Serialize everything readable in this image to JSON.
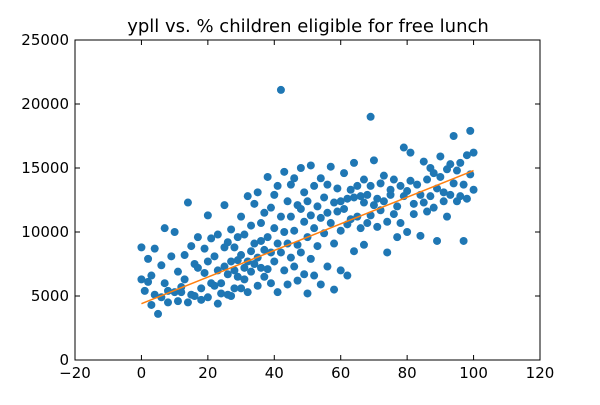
{
  "chart_data": {
    "type": "scatter",
    "title": "ypll vs. % children eligible for free lunch",
    "xlabel": "",
    "ylabel": "",
    "xlim": [
      -20,
      120
    ],
    "ylim": [
      0,
      25000
    ],
    "x_ticks": [
      -20,
      0,
      20,
      40,
      60,
      80,
      100,
      120
    ],
    "y_ticks": [
      0,
      5000,
      10000,
      15000,
      20000,
      25000
    ],
    "x_tick_labels": [
      "−20",
      "0",
      "20",
      "40",
      "60",
      "80",
      "100",
      "120"
    ],
    "y_tick_labels": [
      "0",
      "5000",
      "10000",
      "15000",
      "20000",
      "25000"
    ],
    "grid": false,
    "legend": "none",
    "colors": {
      "points": "#1f77b4",
      "fit_line": "#ff7f0e",
      "axes": "#000000"
    },
    "series": [
      {
        "kind": "points",
        "points": [
          [
            0,
            8800
          ],
          [
            0,
            6300
          ],
          [
            1,
            5400
          ],
          [
            2,
            7900
          ],
          [
            2,
            6100
          ],
          [
            3,
            4300
          ],
          [
            3,
            6600
          ],
          [
            4,
            8700
          ],
          [
            4,
            5100
          ],
          [
            5,
            3600
          ],
          [
            6,
            4900
          ],
          [
            6,
            7400
          ],
          [
            7,
            10300
          ],
          [
            7,
            6000
          ],
          [
            8,
            4500
          ],
          [
            8,
            5400
          ],
          [
            9,
            8100
          ],
          [
            10,
            10000
          ],
          [
            10,
            5300
          ],
          [
            11,
            4600
          ],
          [
            11,
            6900
          ],
          [
            12,
            5700
          ],
          [
            12,
            5300
          ],
          [
            13,
            8200
          ],
          [
            13,
            6300
          ],
          [
            14,
            12300
          ],
          [
            14,
            4500
          ],
          [
            15,
            5100
          ],
          [
            15,
            8900
          ],
          [
            16,
            7500
          ],
          [
            16,
            5000
          ],
          [
            17,
            7200
          ],
          [
            17,
            9600
          ],
          [
            18,
            5600
          ],
          [
            18,
            4700
          ],
          [
            19,
            6800
          ],
          [
            19,
            8700
          ],
          [
            20,
            4900
          ],
          [
            20,
            11300
          ],
          [
            20,
            7700
          ],
          [
            21,
            6000
          ],
          [
            21,
            9500
          ],
          [
            22,
            5800
          ],
          [
            22,
            8100
          ],
          [
            23,
            4400
          ],
          [
            23,
            9800
          ],
          [
            23,
            7000
          ],
          [
            24,
            6000
          ],
          [
            24,
            5200
          ],
          [
            25,
            8800
          ],
          [
            25,
            7300
          ],
          [
            25,
            12100
          ],
          [
            26,
            5100
          ],
          [
            26,
            9200
          ],
          [
            26,
            6700
          ],
          [
            27,
            7700
          ],
          [
            27,
            10200
          ],
          [
            27,
            5000
          ],
          [
            28,
            7000
          ],
          [
            28,
            8800
          ],
          [
            28,
            5600
          ],
          [
            29,
            9600
          ],
          [
            29,
            6500
          ],
          [
            29,
            7800
          ],
          [
            30,
            8200
          ],
          [
            30,
            11200
          ],
          [
            30,
            5600
          ],
          [
            31,
            7200
          ],
          [
            31,
            9800
          ],
          [
            31,
            6300
          ],
          [
            32,
            12800
          ],
          [
            32,
            7700
          ],
          [
            32,
            5300
          ],
          [
            33,
            8500
          ],
          [
            33,
            10500
          ],
          [
            33,
            6900
          ],
          [
            34,
            7500
          ],
          [
            34,
            12200
          ],
          [
            34,
            9100
          ],
          [
            35,
            13100
          ],
          [
            35,
            5800
          ],
          [
            35,
            8000
          ],
          [
            36,
            10700
          ],
          [
            36,
            7200
          ],
          [
            36,
            9300
          ],
          [
            37,
            11500
          ],
          [
            37,
            6500
          ],
          [
            37,
            8600
          ],
          [
            38,
            14300
          ],
          [
            38,
            9600
          ],
          [
            38,
            7100
          ],
          [
            39,
            11900
          ],
          [
            39,
            8400
          ],
          [
            39,
            6000
          ],
          [
            40,
            10300
          ],
          [
            40,
            12900
          ],
          [
            40,
            7700
          ],
          [
            41,
            9100
          ],
          [
            41,
            13600
          ],
          [
            41,
            5300
          ],
          [
            42,
            21100
          ],
          [
            42,
            11200
          ],
          [
            42,
            8400
          ],
          [
            43,
            10000
          ],
          [
            43,
            14700
          ],
          [
            43,
            7000
          ],
          [
            44,
            12400
          ],
          [
            44,
            9100
          ],
          [
            44,
            5900
          ],
          [
            45,
            11200
          ],
          [
            45,
            8000
          ],
          [
            45,
            13700
          ],
          [
            46,
            10100
          ],
          [
            46,
            14200
          ],
          [
            46,
            7300
          ],
          [
            47,
            12100
          ],
          [
            47,
            9000
          ],
          [
            47,
            6200
          ],
          [
            48,
            11800
          ],
          [
            48,
            15000
          ],
          [
            48,
            8400
          ],
          [
            49,
            10800
          ],
          [
            49,
            13100
          ],
          [
            49,
            6700
          ],
          [
            50,
            12400
          ],
          [
            50,
            9600
          ],
          [
            50,
            5200
          ],
          [
            51,
            11300
          ],
          [
            51,
            15200
          ],
          [
            51,
            7900
          ],
          [
            52,
            10300
          ],
          [
            52,
            13600
          ],
          [
            52,
            6600
          ],
          [
            53,
            12000
          ],
          [
            53,
            8900
          ],
          [
            54,
            11100
          ],
          [
            54,
            14200
          ],
          [
            54,
            5900
          ],
          [
            55,
            12700
          ],
          [
            55,
            9900
          ],
          [
            56,
            11500
          ],
          [
            56,
            13700
          ],
          [
            56,
            7300
          ],
          [
            57,
            10700
          ],
          [
            57,
            15100
          ],
          [
            58,
            12300
          ],
          [
            58,
            9100
          ],
          [
            58,
            5500
          ],
          [
            59,
            11600
          ],
          [
            59,
            13400
          ],
          [
            60,
            12400
          ],
          [
            60,
            10100
          ],
          [
            60,
            7000
          ],
          [
            61,
            11800
          ],
          [
            61,
            14600
          ],
          [
            62,
            12600
          ],
          [
            62,
            10600
          ],
          [
            62,
            6600
          ],
          [
            63,
            13300
          ],
          [
            63,
            11000
          ],
          [
            64,
            12700
          ],
          [
            64,
            15400
          ],
          [
            64,
            8500
          ],
          [
            65,
            11200
          ],
          [
            65,
            13600
          ],
          [
            66,
            12800
          ],
          [
            66,
            10300
          ],
          [
            67,
            14100
          ],
          [
            67,
            12300
          ],
          [
            67,
            9000
          ],
          [
            68,
            12900
          ],
          [
            68,
            10700
          ],
          [
            69,
            19000
          ],
          [
            69,
            13600
          ],
          [
            69,
            11300
          ],
          [
            70,
            12100
          ],
          [
            70,
            15600
          ],
          [
            71,
            12600
          ],
          [
            71,
            10400
          ],
          [
            72,
            13800
          ],
          [
            72,
            11700
          ],
          [
            73,
            12400
          ],
          [
            73,
            14400
          ],
          [
            74,
            8400
          ],
          [
            74,
            10800
          ],
          [
            75,
            12900
          ],
          [
            75,
            13300
          ],
          [
            76,
            11400
          ],
          [
            76,
            14100
          ],
          [
            77,
            12000
          ],
          [
            77,
            9600
          ],
          [
            78,
            13600
          ],
          [
            78,
            10700
          ],
          [
            79,
            12800
          ],
          [
            79,
            16600
          ],
          [
            80,
            10000
          ],
          [
            80,
            13200
          ],
          [
            81,
            14000
          ],
          [
            81,
            16200
          ],
          [
            82,
            12200
          ],
          [
            82,
            11400
          ],
          [
            83,
            13700
          ],
          [
            84,
            12900
          ],
          [
            84,
            9700
          ],
          [
            85,
            15500
          ],
          [
            85,
            12300
          ],
          [
            86,
            14100
          ],
          [
            86,
            11600
          ],
          [
            87,
            12800
          ],
          [
            87,
            15000
          ],
          [
            88,
            11900
          ],
          [
            88,
            14600
          ],
          [
            89,
            13400
          ],
          [
            89,
            9300
          ],
          [
            90,
            15900
          ],
          [
            90,
            14300
          ],
          [
            91,
            12400
          ],
          [
            91,
            13100
          ],
          [
            92,
            14900
          ],
          [
            92,
            11200
          ],
          [
            93,
            15300
          ],
          [
            93,
            12900
          ],
          [
            94,
            17500
          ],
          [
            94,
            13800
          ],
          [
            95,
            14800
          ],
          [
            95,
            12400
          ],
          [
            96,
            12800
          ],
          [
            96,
            15400
          ],
          [
            97,
            13700
          ],
          [
            97,
            9300
          ],
          [
            98,
            16000
          ],
          [
            98,
            12600
          ],
          [
            99,
            17900
          ],
          [
            99,
            14500
          ],
          [
            100,
            16200
          ],
          [
            100,
            13300
          ]
        ]
      },
      {
        "kind": "fit_line",
        "x": [
          0,
          100
        ],
        "y": [
          4400,
          14800
        ]
      }
    ]
  }
}
